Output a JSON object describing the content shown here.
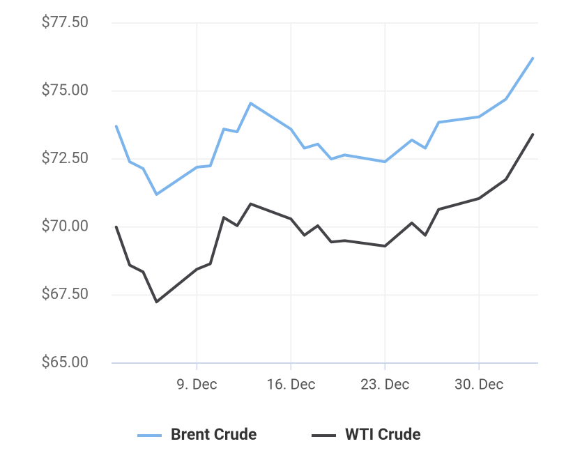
{
  "chart_data": {
    "type": "line",
    "x": [
      3,
      4,
      5,
      6,
      9,
      10,
      11,
      12,
      13,
      16,
      17,
      18,
      19,
      20,
      23,
      25,
      26,
      27,
      30,
      32,
      34
    ],
    "series": [
      {
        "name": "Brent Crude",
        "color": "#7cb5ec",
        "values": [
          73.7,
          72.4,
          72.15,
          71.2,
          72.2,
          72.25,
          73.6,
          73.5,
          74.55,
          73.6,
          72.9,
          73.05,
          72.5,
          72.65,
          72.4,
          73.2,
          72.9,
          73.85,
          74.05,
          74.7,
          76.2
        ]
      },
      {
        "name": "WTI Crude",
        "color": "#434348",
        "values": [
          70.0,
          68.6,
          68.35,
          67.25,
          68.45,
          68.65,
          70.35,
          70.05,
          70.85,
          70.3,
          69.7,
          70.05,
          69.45,
          69.5,
          69.3,
          70.15,
          69.7,
          70.65,
          71.05,
          71.75,
          73.4
        ]
      }
    ],
    "xlim": [
      2.65,
      34.4
    ],
    "xticks": [
      {
        "value": 9,
        "label": "9. Dec"
      },
      {
        "value": 16,
        "label": "16. Dec"
      },
      {
        "value": 23,
        "label": "23. Dec"
      },
      {
        "value": 30,
        "label": "30. Dec"
      }
    ],
    "ylim": [
      65,
      77.5
    ],
    "yticks": [
      {
        "value": 65,
        "label": "$65.00"
      },
      {
        "value": 67.5,
        "label": "$67.50"
      },
      {
        "value": 70,
        "label": "$70.00"
      },
      {
        "value": 72.5,
        "label": "$72.50"
      },
      {
        "value": 75,
        "label": "$75.00"
      },
      {
        "value": 77.5,
        "label": "$77.50"
      }
    ],
    "grid": true,
    "legend": "bottom"
  }
}
